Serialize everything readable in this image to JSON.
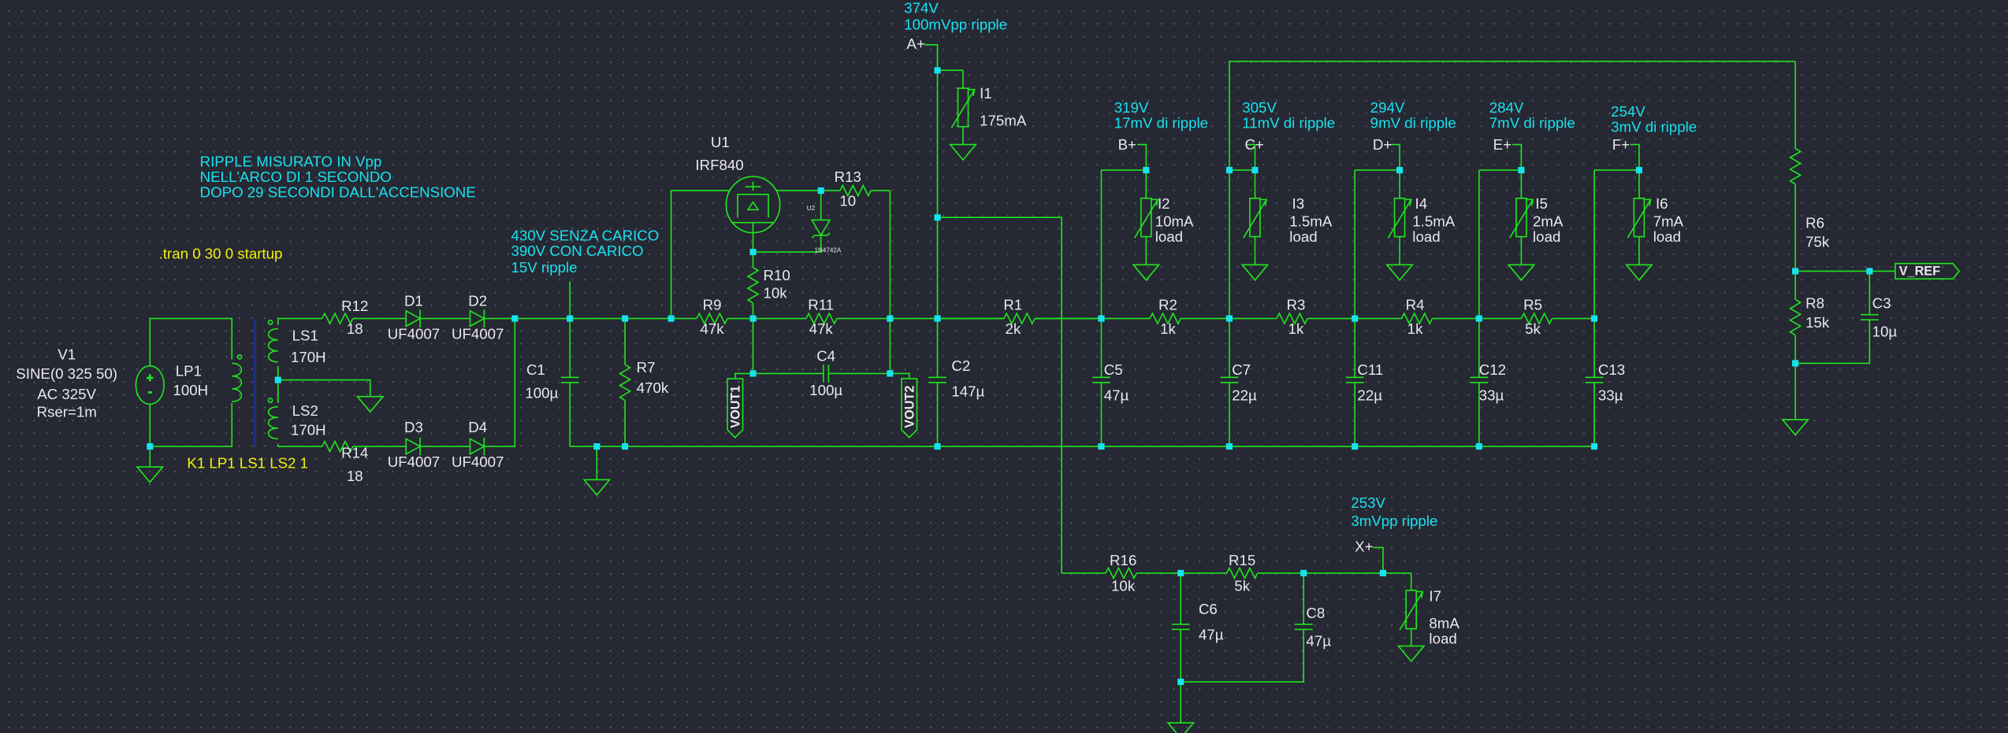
{
  "colors": {
    "background": "#262833",
    "wire": "#1ee61e",
    "junction": "#17e3ef",
    "annotation": "#17e3ef",
    "directive": "#f2f20c",
    "component_text": "#e9e9ee",
    "transformer_core": "#2030c0"
  },
  "notes": {
    "ripple_note": [
      "RIPPLE MISURATO IN Vpp",
      "NELL'ARCO DI 1 SECONDO",
      "DOPO 29 SECONDI DALL'ACCENSIONE"
    ],
    "tran_directive": ".tran 0 30 0 startup",
    "coupling_directive": "K1 LP1 LS1 LS2 1",
    "rectifier_note": [
      "430V SENZA CARICO",
      "390V CON CARICO",
      "15V ripple"
    ]
  },
  "components": {
    "V1": {
      "name": "V1",
      "lines": [
        "SINE(0 325 50)",
        "AC 325V",
        "Rser=1m"
      ]
    },
    "LP1": {
      "name": "LP1",
      "value": "100H"
    },
    "LS1": {
      "name": "LS1",
      "value": "170H"
    },
    "LS2": {
      "name": "LS2",
      "value": "170H"
    },
    "R12": {
      "name": "R12",
      "value": "18"
    },
    "R14": {
      "name": "R14",
      "value": "18"
    },
    "D1": {
      "name": "D1",
      "value": "UF4007"
    },
    "D2": {
      "name": "D2",
      "value": "UF4007"
    },
    "D3": {
      "name": "D3",
      "value": "UF4007"
    },
    "D4": {
      "name": "D4",
      "value": "UF4007"
    },
    "C1": {
      "name": "C1",
      "value": "100µ"
    },
    "R7": {
      "name": "R7",
      "value": "470k"
    },
    "U1": {
      "name": "U1",
      "value": "IRF840"
    },
    "U2": {
      "name": "U2",
      "value": "1N4742A"
    },
    "R13": {
      "name": "R13",
      "value": "10"
    },
    "R10": {
      "name": "R10",
      "value": "10k"
    },
    "R9": {
      "name": "R9",
      "value": "47k"
    },
    "R11": {
      "name": "R11",
      "value": "47k"
    },
    "C4": {
      "name": "C4",
      "value": "100µ"
    },
    "C2": {
      "name": "C2",
      "value": "147µ"
    },
    "R1": {
      "name": "R1",
      "value": "2k"
    },
    "I1": {
      "name": "I1",
      "value": "175mA"
    },
    "I2": {
      "name": "I2",
      "value": "10mA",
      "note": "load"
    },
    "I3": {
      "name": "I3",
      "value": "1.5mA",
      "note": "load"
    },
    "I4": {
      "name": "I4",
      "value": "1.5mA",
      "note": "load"
    },
    "I5": {
      "name": "I5",
      "value": "2mA",
      "note": "load"
    },
    "I6": {
      "name": "I6",
      "value": "7mA",
      "note": "load"
    },
    "I7": {
      "name": "I7",
      "value": "8mA",
      "note": "load"
    },
    "R2": {
      "name": "R2",
      "value": "1k"
    },
    "R3": {
      "name": "R3",
      "value": "1k"
    },
    "R4": {
      "name": "R4",
      "value": "1k"
    },
    "R5": {
      "name": "R5",
      "value": "5k"
    },
    "C5": {
      "name": "C5",
      "value": "47µ"
    },
    "C7": {
      "name": "C7",
      "value": "22µ"
    },
    "C11": {
      "name": "C11",
      "value": "22µ"
    },
    "C12": {
      "name": "C12",
      "value": "33µ"
    },
    "C13": {
      "name": "C13",
      "value": "33µ"
    },
    "R6": {
      "name": "R6",
      "value": "75k"
    },
    "R8": {
      "name": "R8",
      "value": "15k"
    },
    "C3": {
      "name": "C3",
      "value": "10µ"
    },
    "R16": {
      "name": "R16",
      "value": "10k"
    },
    "R15": {
      "name": "R15",
      "value": "5k"
    },
    "C6": {
      "name": "C6",
      "value": "47µ"
    },
    "C8": {
      "name": "C8",
      "value": "47µ"
    }
  },
  "nets": {
    "A": {
      "label": "A+",
      "voltage": "374V",
      "ripple": "100mVpp ripple"
    },
    "B": {
      "label": "B+",
      "voltage": "319V",
      "ripple": "17mV di ripple"
    },
    "C": {
      "label": "C+",
      "voltage": "305V",
      "ripple": "11mV di ripple"
    },
    "D": {
      "label": "D+",
      "voltage": "294V",
      "ripple": "9mV di ripple"
    },
    "E": {
      "label": "E+",
      "voltage": "284V",
      "ripple": "7mV di ripple"
    },
    "F": {
      "label": "F+",
      "voltage": "254V",
      "ripple": "3mV di ripple"
    },
    "X": {
      "label": "X+",
      "voltage": "253V",
      "ripple": "3mVpp ripple"
    },
    "VOUT1": {
      "label": "VOUT1"
    },
    "VOUT2": {
      "label": "VOUT2"
    },
    "VREF": {
      "label": "V_REF"
    }
  }
}
